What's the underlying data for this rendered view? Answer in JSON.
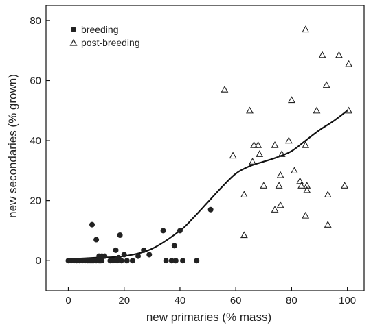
{
  "chart_data": {
    "type": "scatter",
    "xlabel": "new primaries (% mass)",
    "ylabel": "new secondaries (% grown)",
    "xlim": [
      -8,
      106
    ],
    "ylim": [
      -10,
      85
    ],
    "xticks": [
      0,
      20,
      40,
      60,
      80,
      100
    ],
    "yticks": [
      0,
      20,
      40,
      60,
      80
    ],
    "legend_position": "top-left",
    "grid": false,
    "series": [
      {
        "name": "breeding",
        "marker": "filled-circle",
        "color": "#222222",
        "points": [
          [
            0,
            0
          ],
          [
            1,
            0
          ],
          [
            2,
            0
          ],
          [
            3,
            0
          ],
          [
            4,
            0
          ],
          [
            5,
            0
          ],
          [
            6,
            0
          ],
          [
            7,
            0
          ],
          [
            7.5,
            0
          ],
          [
            8,
            0
          ],
          [
            8.5,
            0
          ],
          [
            9,
            0
          ],
          [
            10,
            0
          ],
          [
            11,
            0
          ],
          [
            11.5,
            0
          ],
          [
            12,
            0
          ],
          [
            8.5,
            12
          ],
          [
            10,
            7
          ],
          [
            11,
            1.5
          ],
          [
            12,
            1.5
          ],
          [
            13,
            1.5
          ],
          [
            15,
            0
          ],
          [
            16,
            0
          ],
          [
            17,
            3.5
          ],
          [
            17.5,
            0
          ],
          [
            18,
            1
          ],
          [
            18.5,
            8.5
          ],
          [
            19,
            0
          ],
          [
            20,
            2
          ],
          [
            21,
            0
          ],
          [
            23,
            0
          ],
          [
            25,
            1.5
          ],
          [
            27,
            3.5
          ],
          [
            29,
            2
          ],
          [
            34,
            10
          ],
          [
            35,
            0
          ],
          [
            37,
            0
          ],
          [
            38,
            5
          ],
          [
            38.5,
            0
          ],
          [
            40,
            10
          ],
          [
            41,
            0
          ],
          [
            46,
            0
          ],
          [
            51,
            17
          ]
        ]
      },
      {
        "name": "post-breeding",
        "marker": "open-triangle",
        "color": "#222222",
        "points": [
          [
            56,
            57
          ],
          [
            59,
            35
          ],
          [
            63,
            8.5
          ],
          [
            63,
            22
          ],
          [
            65,
            50
          ],
          [
            66,
            33
          ],
          [
            66.5,
            38.5
          ],
          [
            68,
            38.5
          ],
          [
            68.5,
            35.5
          ],
          [
            70,
            25
          ],
          [
            74,
            17
          ],
          [
            74,
            38.5
          ],
          [
            75.5,
            25
          ],
          [
            76,
            18.5
          ],
          [
            76,
            28.5
          ],
          [
            76.5,
            35.5
          ],
          [
            79,
            40
          ],
          [
            80,
            53.5
          ],
          [
            81,
            30
          ],
          [
            83,
            26.5
          ],
          [
            83.5,
            25
          ],
          [
            85,
            77
          ],
          [
            85,
            15
          ],
          [
            85.5,
            25
          ],
          [
            85.5,
            23.5
          ],
          [
            85,
            38.5
          ],
          [
            89,
            50
          ],
          [
            91,
            68.5
          ],
          [
            92.5,
            58.5
          ],
          [
            93,
            22
          ],
          [
            93,
            12
          ],
          [
            97,
            68.5
          ],
          [
            99,
            25
          ],
          [
            100.5,
            65.5
          ],
          [
            100.5,
            50
          ]
        ]
      }
    ],
    "fit_line": {
      "x": [
        0,
        10,
        20,
        30,
        40,
        45,
        50,
        55,
        60,
        65,
        70,
        75,
        80,
        85,
        90,
        95,
        100
      ],
      "y": [
        0.5,
        1,
        1.5,
        4,
        10,
        14.5,
        19.5,
        24.5,
        29,
        31.5,
        33,
        34.5,
        36.5,
        40,
        43.5,
        46.5,
        50
      ]
    }
  }
}
